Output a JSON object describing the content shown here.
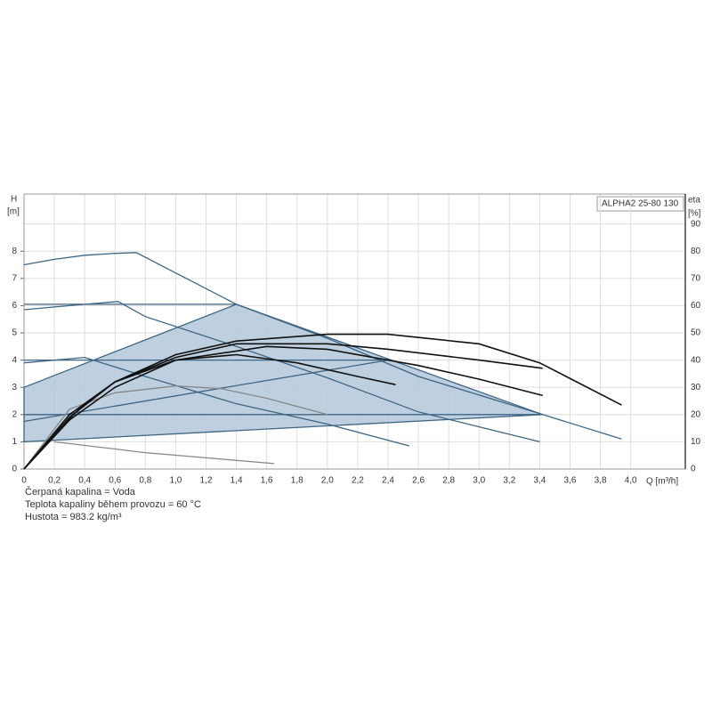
{
  "chart_data": {
    "type": "line",
    "legend_title": "ALPHA2 25-80 130",
    "y_label": "H",
    "y_unit": "[m]",
    "y2_label": "eta",
    "y2_unit": "[%]",
    "x_label": "Q [m³/h]",
    "notes": [
      "Čerpaná kapalina = Voda",
      "Teplota kapaliny během provozu = 60 °C",
      "Hustota = 983.2 kg/m³"
    ],
    "xlim": [
      0,
      4.36
    ],
    "ylim": [
      0,
      10.1
    ],
    "y2lim": [
      0,
      101
    ],
    "xticks": [
      0,
      {
        "value": 0.2,
        "label": "0,2"
      },
      {
        "value": 0.4,
        "label": "0,4"
      },
      {
        "value": 0.6,
        "label": "0,6"
      },
      {
        "value": 0.8,
        "label": "0,8"
      },
      {
        "value": 1.0,
        "label": "1,0"
      },
      {
        "value": 1.2,
        "label": "1,2"
      },
      {
        "value": 1.4,
        "label": "1,4"
      },
      {
        "value": 1.6,
        "label": "1,6"
      },
      {
        "value": 1.8,
        "label": "1,8"
      },
      {
        "value": 2.0,
        "label": "2,0"
      },
      {
        "value": 2.2,
        "label": "2,2"
      },
      {
        "value": 2.4,
        "label": "2,4"
      },
      {
        "value": 2.6,
        "label": "2,6"
      },
      {
        "value": 2.8,
        "label": "2,8"
      },
      {
        "value": 3.0,
        "label": "3,0"
      },
      {
        "value": 3.2,
        "label": "3,2"
      },
      {
        "value": 3.4,
        "label": "3,4"
      },
      {
        "value": 3.6,
        "label": "3,6"
      },
      {
        "value": 3.8,
        "label": "3,8"
      },
      {
        "value": 4.0,
        "label": "4,0"
      }
    ],
    "yticks": [
      0,
      1,
      2,
      3,
      4,
      5,
      6,
      7,
      8
    ],
    "y2ticks": [
      0,
      10,
      20,
      30,
      40,
      50,
      60,
      70,
      80,
      90
    ],
    "grid": true,
    "series": [
      {
        "fill": "#b7cadc",
        "color": "#3d6584",
        "x": [
          0,
          1.4,
          3.42,
          0
        ],
        "values": [
          3.0,
          6.05,
          2.0,
          1.0
        ]
      },
      {
        "color": "#3d6584",
        "x": [
          0,
          0.2,
          0.4,
          0.6,
          0.74,
          1.0,
          1.4,
          2.0,
          2.6,
          3.42,
          3.94
        ],
        "values": [
          7.5,
          7.7,
          7.85,
          7.92,
          7.95,
          7.2,
          6.05,
          4.8,
          3.4,
          2.0,
          1.1
        ]
      },
      {
        "color": "#3d6584",
        "x": [
          0,
          0.3,
          0.62,
          0.8,
          1.4,
          2.0,
          2.6,
          3.4
        ],
        "values": [
          5.85,
          6.0,
          6.15,
          5.6,
          4.5,
          3.35,
          2.1,
          1.0
        ]
      },
      {
        "color": "#3d6584",
        "x": [
          0,
          0.4,
          0.8,
          1.4,
          2.0,
          2.54
        ],
        "values": [
          3.9,
          4.1,
          3.4,
          2.4,
          1.65,
          0.85
        ]
      },
      {
        "color": "#3d6584",
        "x": [
          0,
          1.4
        ],
        "values": [
          6.05,
          6.05
        ]
      },
      {
        "color": "#3d6584",
        "x": [
          0,
          2.36
        ],
        "values": [
          4.0,
          4.0
        ]
      },
      {
        "color": "#3d6584",
        "x": [
          0,
          3.42
        ],
        "values": [
          2.0,
          2.0
        ]
      },
      {
        "color": "#3d6584",
        "x": [
          0,
          2.4
        ],
        "values": [
          1.75,
          4.0
        ]
      },
      {
        "color": "#888888",
        "x": [
          0,
          0.3,
          0.6,
          1.0,
          1.3,
          1.6,
          2.0
        ],
        "values": [
          0,
          2.2,
          2.8,
          3.05,
          2.95,
          2.6,
          2.0
        ]
      },
      {
        "color": "#888888",
        "x": [
          0.2,
          0.8,
          1.65
        ],
        "values": [
          1.0,
          0.6,
          0.2
        ]
      },
      {
        "color": "#111111",
        "axis": "y2",
        "x": [
          0,
          0.2,
          0.4,
          0.6,
          1.0,
          1.4,
          2.0,
          2.4,
          3.0,
          3.4,
          3.94
        ],
        "values": [
          0,
          13,
          24,
          32,
          42,
          47,
          49.5,
          49.5,
          46,
          39,
          23.5
        ]
      },
      {
        "color": "#111111",
        "axis": "y2",
        "x": [
          0,
          0.3,
          0.6,
          1.0,
          1.4,
          2.0,
          2.4,
          3.0,
          3.42
        ],
        "values": [
          0,
          20,
          32,
          41,
          46,
          46,
          44,
          40,
          37
        ]
      },
      {
        "color": "#111111",
        "axis": "y2",
        "x": [
          0,
          0.3,
          0.6,
          1.0,
          1.6,
          2.0,
          2.6,
          3.0,
          3.42
        ],
        "values": [
          0,
          18,
          30,
          40,
          45,
          44,
          38,
          33,
          27
        ]
      },
      {
        "color": "#111111",
        "axis": "y2",
        "x": [
          0,
          0.3,
          0.6,
          1.0,
          1.4,
          1.8,
          2.2,
          2.45
        ],
        "values": [
          0,
          19,
          32,
          40,
          42,
          39,
          34,
          31
        ]
      }
    ]
  }
}
